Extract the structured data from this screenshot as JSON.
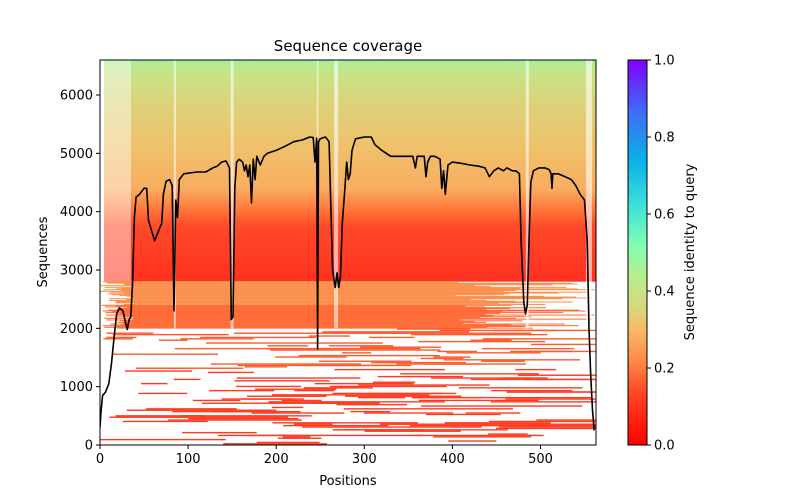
{
  "chart_data": {
    "type": "heatmap",
    "title": "Sequence coverage",
    "xlabel": "Positions",
    "ylabel": "Sequences",
    "xlim": [
      0,
      563
    ],
    "ylim": [
      0,
      6600
    ],
    "xticks": [
      0,
      100,
      200,
      300,
      400,
      500
    ],
    "yticks": [
      0,
      1000,
      2000,
      3000,
      4000,
      5000,
      6000
    ],
    "grid": false,
    "colorbar": {
      "label": "Sequence identity to query",
      "range": [
        0,
        1
      ],
      "ticks": [
        0.0,
        0.2,
        0.4,
        0.6,
        0.8,
        1.0
      ],
      "tick_labels": [
        "0.0",
        "0.2",
        "0.4",
        "0.6",
        "0.8",
        "1.0"
      ],
      "colormap": "rainbow_r",
      "stops": [
        "#ff0000",
        "#ff5a30",
        "#fdb262",
        "#c0ea8a",
        "#80ffb4",
        "#1ac2e4",
        "#4c4cff",
        "#8000ff"
      ]
    },
    "heatmap_description": "Alignment rows sorted by identity: bottom rows (~0-2000) sparse red/orange-red (identity ~0.05-0.18), middle rows (~2000-2800) dense orange (~0.2), upper rows (~2800-6600) dense orange to yellow-green (~0.22-0.42), gaps near positions 0-35, 85, 150, 245, 265-275, 485, 555-563",
    "series": [
      {
        "name": "coverage",
        "color": "#000000",
        "points": [
          [
            0,
            300
          ],
          [
            1,
            550
          ],
          [
            3,
            850
          ],
          [
            6,
            900
          ],
          [
            10,
            1050
          ],
          [
            13,
            1400
          ],
          [
            16,
            1850
          ],
          [
            19,
            2250
          ],
          [
            22,
            2350
          ],
          [
            26,
            2300
          ],
          [
            29,
            2100
          ],
          [
            31,
            1980
          ],
          [
            33,
            2150
          ],
          [
            35,
            2200
          ],
          [
            37,
            2800
          ],
          [
            39,
            3900
          ],
          [
            41,
            4250
          ],
          [
            45,
            4300
          ],
          [
            50,
            4400
          ],
          [
            53,
            4400
          ],
          [
            55,
            3850
          ],
          [
            58,
            3700
          ],
          [
            62,
            3500
          ],
          [
            66,
            3650
          ],
          [
            70,
            3800
          ],
          [
            72,
            4300
          ],
          [
            75,
            4520
          ],
          [
            79,
            4550
          ],
          [
            82,
            4450
          ],
          [
            84,
            2300
          ],
          [
            86,
            4200
          ],
          [
            88,
            3900
          ],
          [
            90,
            4550
          ],
          [
            95,
            4650
          ],
          [
            110,
            4680
          ],
          [
            120,
            4680
          ],
          [
            128,
            4750
          ],
          [
            133,
            4780
          ],
          [
            138,
            4850
          ],
          [
            143,
            4870
          ],
          [
            147,
            4750
          ],
          [
            149,
            2150
          ],
          [
            151,
            2200
          ],
          [
            153,
            4400
          ],
          [
            155,
            4850
          ],
          [
            158,
            4900
          ],
          [
            162,
            4850
          ],
          [
            164,
            4700
          ],
          [
            166,
            4800
          ],
          [
            168,
            4600
          ],
          [
            170,
            4800
          ],
          [
            172,
            4150
          ],
          [
            174,
            4900
          ],
          [
            176,
            4550
          ],
          [
            178,
            4950
          ],
          [
            182,
            4800
          ],
          [
            186,
            4950
          ],
          [
            190,
            5000
          ],
          [
            200,
            5050
          ],
          [
            210,
            5120
          ],
          [
            220,
            5200
          ],
          [
            230,
            5230
          ],
          [
            238,
            5280
          ],
          [
            242,
            5270
          ],
          [
            244,
            4850
          ],
          [
            246,
            5260
          ],
          [
            247,
            1650
          ],
          [
            248,
            5200
          ],
          [
            250,
            5250
          ],
          [
            256,
            5280
          ],
          [
            260,
            5200
          ],
          [
            262,
            4100
          ],
          [
            264,
            3000
          ],
          [
            267,
            2700
          ],
          [
            269,
            2950
          ],
          [
            271,
            2700
          ],
          [
            273,
            2900
          ],
          [
            275,
            3800
          ],
          [
            278,
            4400
          ],
          [
            280,
            4850
          ],
          [
            282,
            4550
          ],
          [
            284,
            4650
          ],
          [
            286,
            5050
          ],
          [
            290,
            5250
          ],
          [
            300,
            5280
          ],
          [
            308,
            5280
          ],
          [
            312,
            5150
          ],
          [
            320,
            5050
          ],
          [
            330,
            4950
          ],
          [
            340,
            4950
          ],
          [
            350,
            4950
          ],
          [
            355,
            4950
          ],
          [
            358,
            4750
          ],
          [
            360,
            4950
          ],
          [
            368,
            4950
          ],
          [
            370,
            4600
          ],
          [
            372,
            4850
          ],
          [
            375,
            4950
          ],
          [
            380,
            4950
          ],
          [
            386,
            4900
          ],
          [
            388,
            4400
          ],
          [
            390,
            4700
          ],
          [
            392,
            4300
          ],
          [
            395,
            4800
          ],
          [
            400,
            4850
          ],
          [
            410,
            4830
          ],
          [
            420,
            4800
          ],
          [
            430,
            4780
          ],
          [
            437,
            4750
          ],
          [
            442,
            4600
          ],
          [
            447,
            4700
          ],
          [
            452,
            4750
          ],
          [
            458,
            4700
          ],
          [
            462,
            4750
          ],
          [
            468,
            4700
          ],
          [
            472,
            4700
          ],
          [
            476,
            4650
          ],
          [
            478,
            3500
          ],
          [
            481,
            2450
          ],
          [
            483,
            2250
          ],
          [
            485,
            2400
          ],
          [
            487,
            3500
          ],
          [
            489,
            4500
          ],
          [
            492,
            4700
          ],
          [
            498,
            4750
          ],
          [
            505,
            4750
          ],
          [
            510,
            4720
          ],
          [
            512,
            4650
          ],
          [
            513,
            4400
          ],
          [
            514,
            4650
          ],
          [
            520,
            4650
          ],
          [
            528,
            4600
          ],
          [
            535,
            4550
          ],
          [
            540,
            4450
          ],
          [
            545,
            4300
          ],
          [
            550,
            4200
          ],
          [
            553,
            3500
          ],
          [
            555,
            2000
          ],
          [
            557,
            1200
          ],
          [
            559,
            600
          ],
          [
            561,
            250
          ]
        ]
      }
    ]
  }
}
